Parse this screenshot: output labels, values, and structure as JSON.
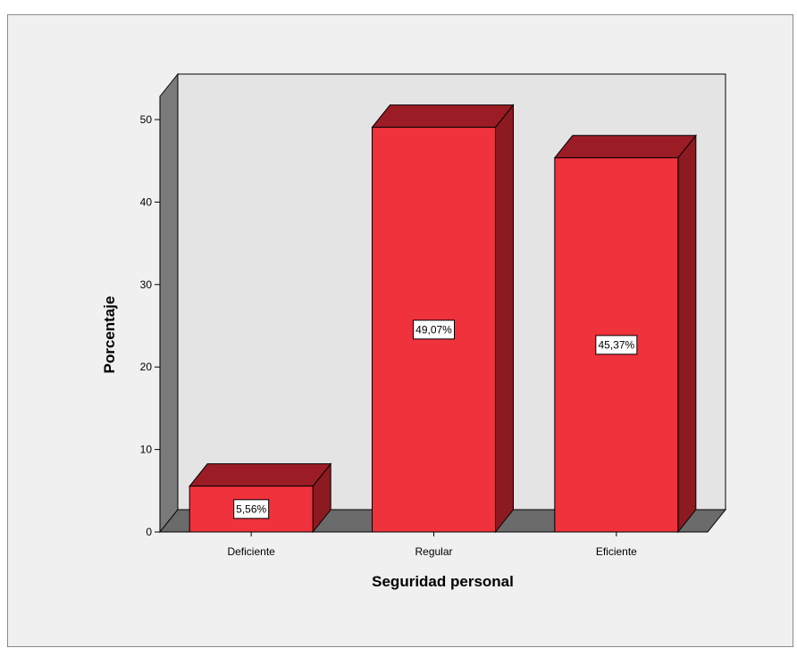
{
  "chart_data": {
    "type": "bar",
    "categories": [
      "Deficiente",
      "Regular",
      "Eficiente"
    ],
    "values": [
      5.56,
      49.07,
      45.37
    ],
    "data_labels": [
      "5,56%",
      "49,07%",
      "45,37%"
    ],
    "xlabel": "Seguridad personal",
    "ylabel": "Porcentaje",
    "ylim": [
      0,
      50
    ],
    "yticks": [
      0,
      10,
      20,
      30,
      40,
      50
    ],
    "style": "3d",
    "grid": false,
    "legend": "none",
    "colors": {
      "bar_front": "#f0323c",
      "bar_top": "#9b1c24",
      "bar_side": "#8c1a21",
      "back_wall": "#e4e4e4",
      "side_wall": "#7a7a7a",
      "floor": "#6b6b6b",
      "frame_bg": "#f0f0f0"
    }
  }
}
